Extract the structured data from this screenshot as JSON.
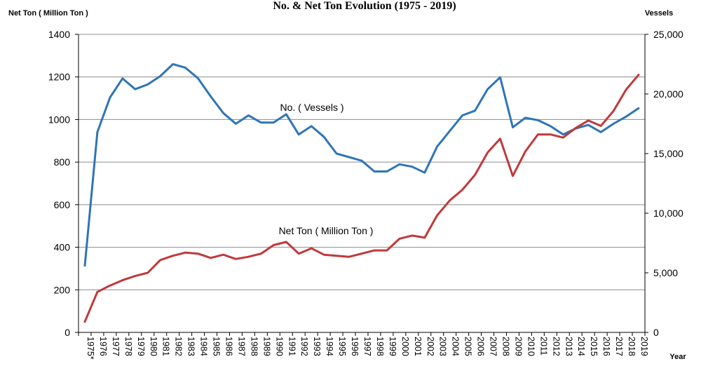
{
  "chart_data": {
    "type": "line",
    "title": "No. & Net Ton Evolution (1975 - 2019)",
    "left_axis_label": "Net Ton ( Million Ton )",
    "right_axis_label": "Vessels",
    "xlabel": "Year",
    "left_ylim": [
      0,
      1400
    ],
    "left_ticks": [
      "0",
      "200",
      "400",
      "600",
      "800",
      "1000",
      "1200",
      "1400"
    ],
    "right_ylim": [
      0,
      25000
    ],
    "right_ticks": [
      "0",
      "5,000",
      "10,000",
      "15,000",
      "20,000",
      "25,000"
    ],
    "grid": true,
    "categories": [
      "1975*",
      "1976",
      "1977",
      "1978",
      "1979",
      "1980",
      "1981",
      "1982",
      "1983",
      "1984",
      "1985",
      "1986",
      "1987",
      "1988",
      "1989",
      "1990",
      "1991",
      "1992",
      "1993",
      "1994",
      "1995",
      "1996",
      "1997",
      "1998",
      "1999",
      "2000",
      "2001",
      "2002",
      "2003",
      "2004",
      "2005",
      "2006",
      "2007",
      "2008",
      "2009",
      "2010",
      "2011",
      "2012",
      "2013",
      "2014",
      "2015",
      "2016",
      "2017",
      "2018",
      "2019"
    ],
    "series": [
      {
        "name": "No. ( Vessels )",
        "axis": "right",
        "color": "#2e75b6",
        "values": [
          5600,
          16800,
          19700,
          21300,
          20400,
          20800,
          21500,
          22500,
          22200,
          21300,
          19800,
          18400,
          17500,
          18200,
          17600,
          17600,
          18300,
          16600,
          17300,
          16400,
          15000,
          14700,
          14400,
          13500,
          13500,
          14100,
          13900,
          13400,
          15600,
          16900,
          18200,
          18600,
          20400,
          21400,
          17200,
          18000,
          17800,
          17300,
          16600,
          17100,
          17400,
          16800,
          17500,
          18100,
          18800
        ]
      },
      {
        "name": "Net Ton ( Million Ton )",
        "axis": "left",
        "color": "#c0393b",
        "values": [
          50,
          190,
          220,
          245,
          265,
          280,
          340,
          360,
          375,
          370,
          350,
          365,
          345,
          355,
          370,
          410,
          425,
          370,
          395,
          365,
          360,
          355,
          370,
          385,
          385,
          440,
          455,
          445,
          550,
          620,
          670,
          740,
          845,
          910,
          735,
          850,
          930,
          930,
          915,
          960,
          995,
          970,
          1040,
          1140,
          1210
        ]
      }
    ],
    "annotations": [
      {
        "text": "No. ( Vessels )",
        "series": "No. ( Vessels )"
      },
      {
        "text": "Net Ton ( Million Ton )",
        "series": "Net Ton ( Million Ton )"
      }
    ]
  }
}
